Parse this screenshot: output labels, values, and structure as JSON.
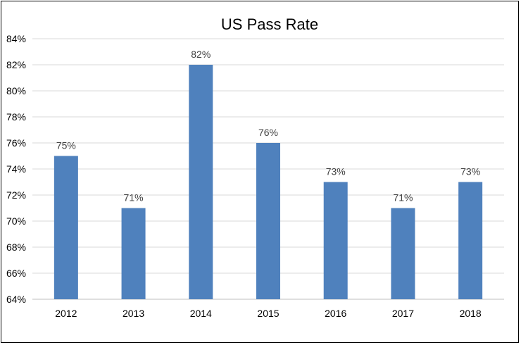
{
  "chart_data": {
    "type": "bar",
    "title": "US Pass Rate",
    "categories": [
      "2012",
      "2013",
      "2014",
      "2015",
      "2016",
      "2017",
      "2018"
    ],
    "values": [
      75,
      71,
      82,
      76,
      73,
      71,
      73
    ],
    "data_labels": [
      "75%",
      "71%",
      "82%",
      "76%",
      "73%",
      "71%",
      "73%"
    ],
    "ylim": [
      64,
      84
    ],
    "y_ticks": [
      64,
      66,
      68,
      70,
      72,
      74,
      76,
      78,
      80,
      82,
      84
    ],
    "y_tick_labels": [
      "64%",
      "66%",
      "68%",
      "70%",
      "72%",
      "74%",
      "76%",
      "78%",
      "80%",
      "82%",
      "84%"
    ],
    "xlabel": "",
    "ylabel": "",
    "grid": true,
    "legend": "none",
    "bar_color": "#4F81BD",
    "grid_color": "#D9D9D9"
  }
}
